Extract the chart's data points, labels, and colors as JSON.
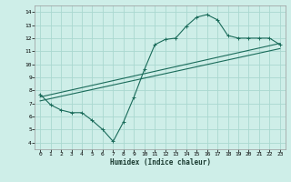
{
  "title": "",
  "xlabel": "Humidex (Indice chaleur)",
  "ylabel": "",
  "background_color": "#ceeee8",
  "grid_color": "#aad8d0",
  "line_color": "#1a6b5a",
  "xlim": [
    -0.5,
    23.5
  ],
  "ylim": [
    3.5,
    14.5
  ],
  "xticks": [
    0,
    1,
    2,
    3,
    4,
    5,
    6,
    7,
    8,
    9,
    10,
    11,
    12,
    13,
    14,
    15,
    16,
    17,
    18,
    19,
    20,
    21,
    22,
    23
  ],
  "yticks": [
    4,
    5,
    6,
    7,
    8,
    9,
    10,
    11,
    12,
    13,
    14
  ],
  "curve1_x": [
    0,
    1,
    2,
    3,
    4,
    5,
    6,
    7,
    8,
    9,
    10,
    11,
    12,
    13,
    14,
    15,
    16,
    17,
    18,
    19,
    20,
    21,
    22,
    23
  ],
  "curve1_y": [
    7.7,
    6.9,
    6.5,
    6.3,
    6.3,
    5.7,
    5.0,
    4.1,
    5.6,
    7.5,
    9.6,
    11.5,
    11.9,
    12.0,
    12.9,
    13.6,
    13.8,
    13.4,
    12.2,
    12.0,
    12.0,
    12.0,
    12.0,
    11.5
  ],
  "line1_x": [
    0,
    23
  ],
  "line1_y": [
    7.5,
    11.6
  ],
  "line2_x": [
    0,
    23
  ],
  "line2_y": [
    7.2,
    11.2
  ]
}
